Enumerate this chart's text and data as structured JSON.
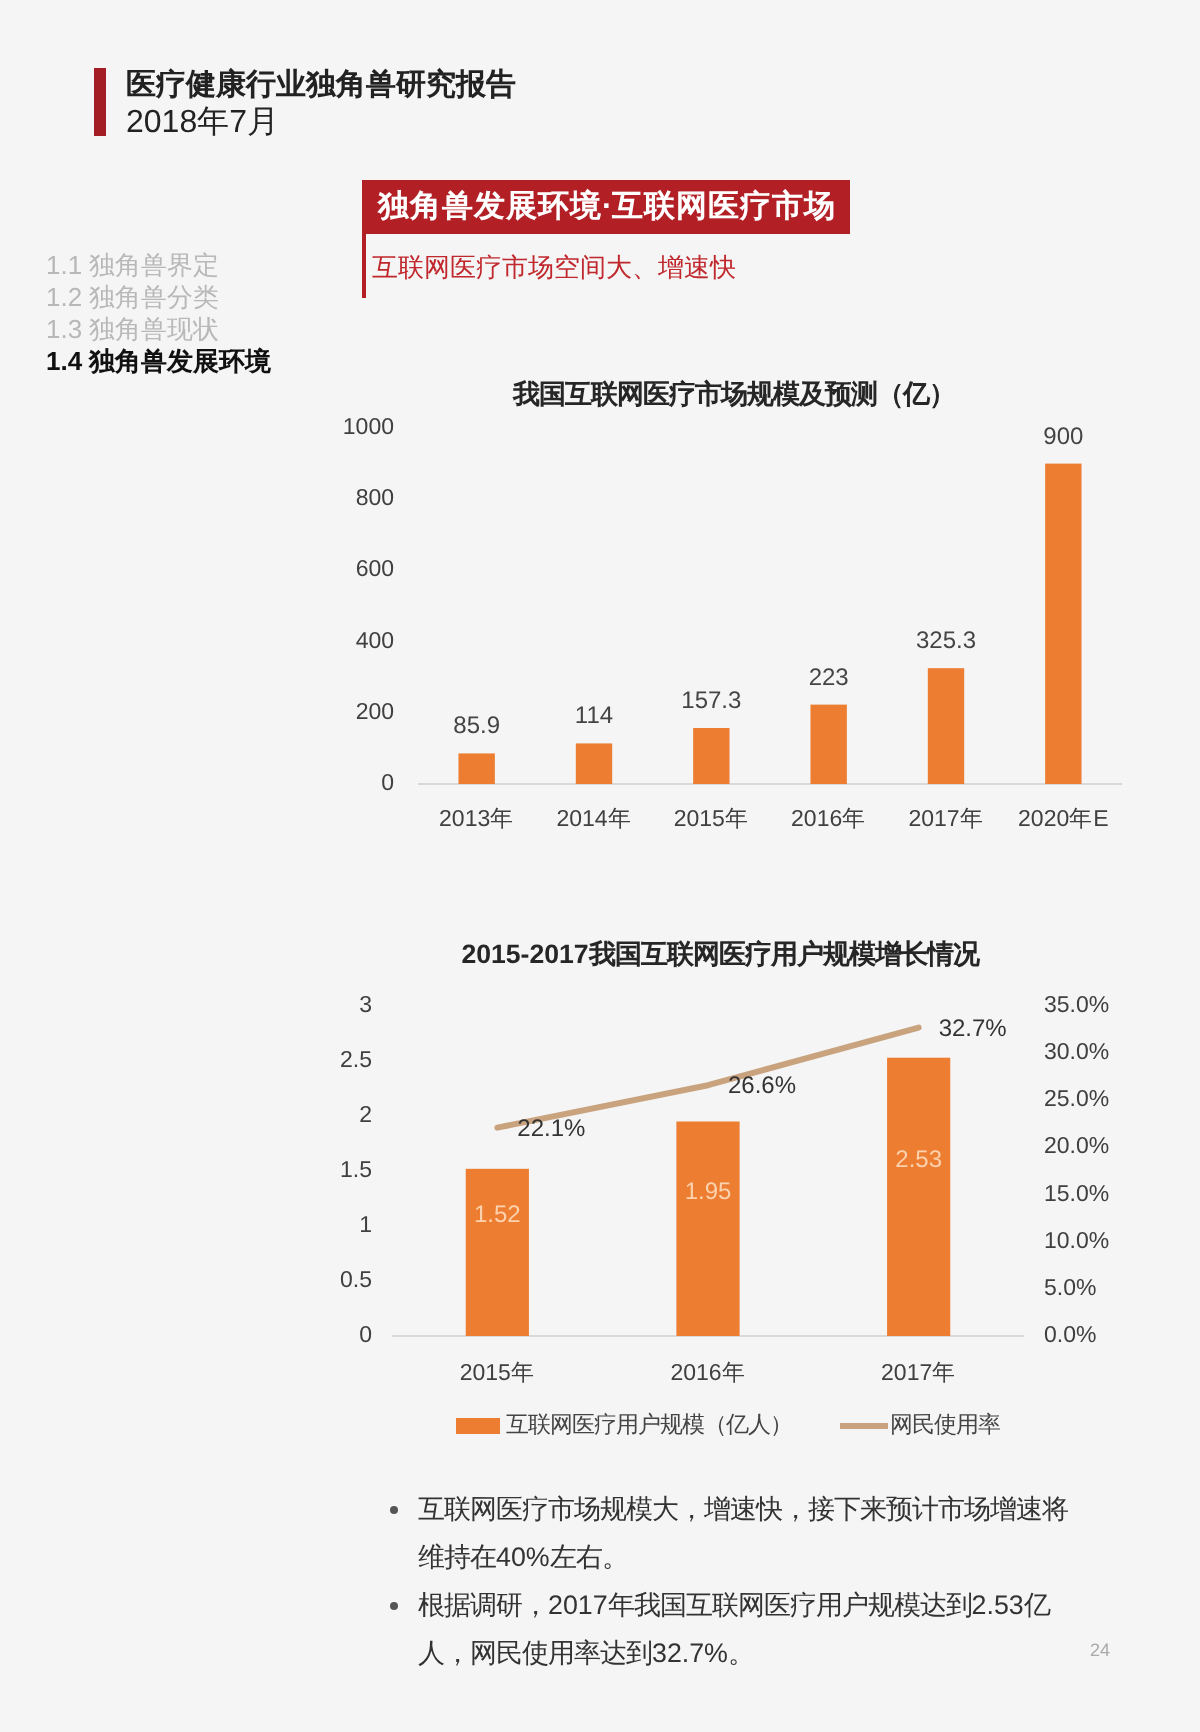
{
  "chart_data": [
    {
      "type": "other",
      "title": "医疗健康行业独角兽研究报告",
      "subtitle": "2018年7月"
    },
    {
      "type": "other",
      "title": "独角兽发展环境·互联网医疗市场",
      "subtitle": "互联网医疗市场空间大、增速快",
      "annotations": [
        "1.1 独角兽界定",
        "1.2 独角兽分类",
        "1.3 独角兽现状",
        "1.4 独角兽发展环境"
      ]
    },
    {
      "type": "bar",
      "title": "我国互联网医疗市场规模及预测（亿）",
      "categories": [
        "2013年",
        "2014年",
        "2015年",
        "2016年",
        "2017年",
        "2020年E"
      ],
      "values": [
        85.9,
        114,
        157.3,
        223,
        325.3,
        900
      ],
      "color": "#ed7d31",
      "ylim": [
        0,
        1000
      ],
      "yticks": [
        0,
        200,
        400,
        600,
        800,
        1000
      ],
      "data_labels": true
    },
    {
      "type": "bar",
      "title": "2015-2017我国互联网医疗用户规模增长情况",
      "categories": [
        "2015年",
        "2016年",
        "2017年"
      ],
      "series": [
        {
          "name": "互联网医疗用户规模（亿人）",
          "color": "#ed7d31",
          "values": [
            1.52,
            1.95,
            2.53
          ],
          "value_labels": [
            "1.52",
            "1.95",
            "2.53"
          ]
        },
        {
          "name": "网民使用率",
          "type": "line",
          "axis": "y2",
          "color": "#c9a27e",
          "values": [
            22.1,
            26.6,
            32.7
          ],
          "value_labels": [
            "22.1%",
            "26.6%",
            "32.7%"
          ]
        }
      ],
      "ylim": [
        0,
        3
      ],
      "yticks": [
        0,
        0.5,
        1,
        1.5,
        2,
        2.5,
        3
      ],
      "y2lim": [
        0,
        35
      ],
      "y2ticks": [
        {
          "value": 0,
          "label": "0.0%"
        },
        {
          "value": 5,
          "label": "5.0%"
        },
        {
          "value": 10,
          "label": "10.0%"
        },
        {
          "value": 15,
          "label": "15.0%"
        },
        {
          "value": 20,
          "label": "20.0%"
        },
        {
          "value": 25,
          "label": "25.0%"
        },
        {
          "value": 30,
          "label": "30.0%"
        },
        {
          "value": 35,
          "label": "35.0%"
        }
      ],
      "legend": "bottom"
    },
    {
      "type": "other",
      "annotations": [
        "互联网医疗市场规模大，增速快，接下来预计市场增速将维持在40%左右。",
        "根据调研，2017年我国互联网医疗用户规模达到2.53亿人，网民使用率达到32.7%。",
        "24"
      ]
    }
  ]
}
